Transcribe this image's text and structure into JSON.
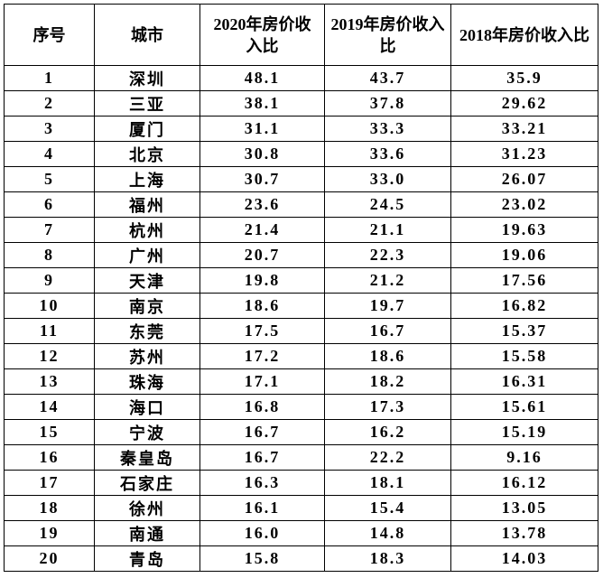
{
  "table": {
    "header": [
      "序号",
      "城市",
      "2020年房价收入比",
      "2019年房价收入比",
      "2018年房价收入比"
    ],
    "rows": [
      [
        "1",
        "深圳",
        "48.1",
        "43.7",
        "35.9"
      ],
      [
        "2",
        "三亚",
        "38.1",
        "37.8",
        "29.62"
      ],
      [
        "3",
        "厦门",
        "31.1",
        "33.3",
        "33.21"
      ],
      [
        "4",
        "北京",
        "30.8",
        "33.6",
        "31.23"
      ],
      [
        "5",
        "上海",
        "30.7",
        "33.0",
        "26.07"
      ],
      [
        "6",
        "福州",
        "23.6",
        "24.5",
        "23.02"
      ],
      [
        "7",
        "杭州",
        "21.4",
        "21.1",
        "19.63"
      ],
      [
        "8",
        "广州",
        "20.7",
        "22.3",
        "19.06"
      ],
      [
        "9",
        "天津",
        "19.8",
        "21.2",
        "17.56"
      ],
      [
        "10",
        "南京",
        "18.6",
        "19.7",
        "16.82"
      ],
      [
        "11",
        "东莞",
        "17.5",
        "16.7",
        "15.37"
      ],
      [
        "12",
        "苏州",
        "17.2",
        "18.6",
        "15.58"
      ],
      [
        "13",
        "珠海",
        "17.1",
        "18.2",
        "16.31"
      ],
      [
        "14",
        "海口",
        "16.8",
        "17.3",
        "15.61"
      ],
      [
        "15",
        "宁波",
        "16.7",
        "16.2",
        "15.19"
      ],
      [
        "16",
        "秦皇岛",
        "16.7",
        "22.2",
        "9.16"
      ],
      [
        "17",
        "石家庄",
        "16.3",
        "18.1",
        "16.12"
      ],
      [
        "18",
        "徐州",
        "16.1",
        "15.4",
        "13.05"
      ],
      [
        "19",
        "南通",
        "16.0",
        "14.8",
        "13.78"
      ],
      [
        "20",
        "青岛",
        "15.8",
        "18.3",
        "14.03"
      ]
    ]
  }
}
